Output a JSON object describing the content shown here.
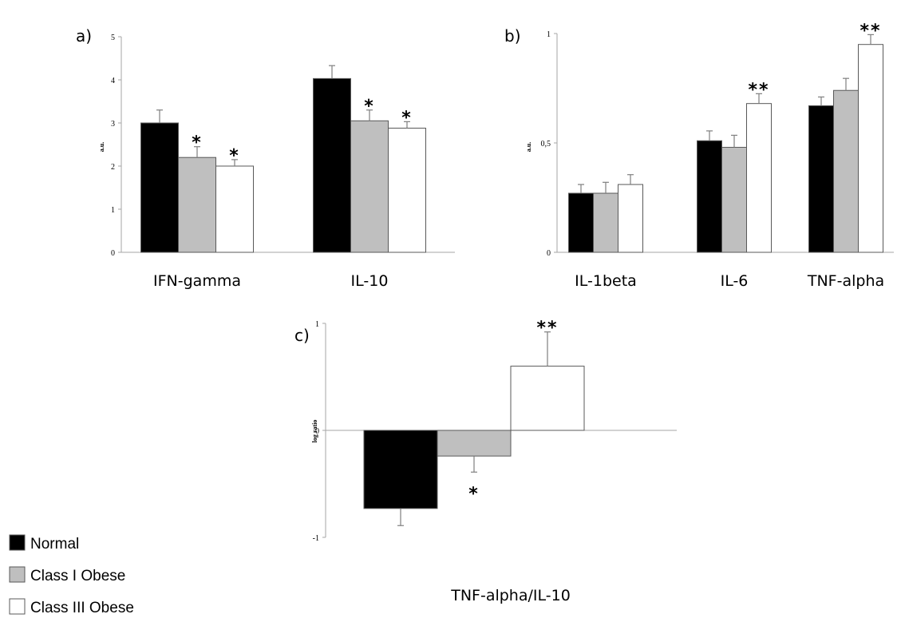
{
  "colors": {
    "Normal": "#000000",
    "Class I Obese": "#bfbfbf",
    "Class III Obese": "#ffffff",
    "axis": "#a6a6a6",
    "bar_stroke": "#595959"
  },
  "legend": {
    "items": [
      "Normal",
      "Class I Obese",
      "Class III Obese"
    ]
  },
  "chart_data": [
    {
      "panel": "a)",
      "type": "bar",
      "ylabel": "a.u.",
      "ylim": [
        0,
        5
      ],
      "yticks": [
        "0",
        "1",
        "2",
        "3",
        "4",
        "5"
      ],
      "categories": [
        "IFN-gamma",
        "IL-10"
      ],
      "series": [
        {
          "name": "Normal",
          "values": [
            3.0,
            4.03
          ],
          "errors": [
            0.3,
            0.3
          ]
        },
        {
          "name": "Class I Obese",
          "values": [
            2.2,
            3.05
          ],
          "errors": [
            0.25,
            0.25
          ]
        },
        {
          "name": "Class III Obese",
          "values": [
            2.0,
            2.88
          ],
          "errors": [
            0.15,
            0.15
          ]
        }
      ],
      "annotations": [
        {
          "category": "IFN-gamma",
          "series": "Class I Obese",
          "text": "*"
        },
        {
          "category": "IFN-gamma",
          "series": "Class III Obese",
          "text": "*"
        },
        {
          "category": "IL-10",
          "series": "Class I Obese",
          "text": "*"
        },
        {
          "category": "IL-10",
          "series": "Class III Obese",
          "text": "*"
        }
      ]
    },
    {
      "panel": "b)",
      "type": "bar",
      "ylabel": "a.u.",
      "ylim": [
        0,
        1
      ],
      "yticks": [
        "0",
        "0,5",
        "1"
      ],
      "categories": [
        "IL-1beta",
        "IL-6",
        "TNF-alpha"
      ],
      "series": [
        {
          "name": "Normal",
          "values": [
            0.27,
            0.51,
            0.67
          ],
          "errors": [
            0.04,
            0.045,
            0.04
          ]
        },
        {
          "name": "Class I Obese",
          "values": [
            0.27,
            0.48,
            0.74
          ],
          "errors": [
            0.05,
            0.055,
            0.055
          ]
        },
        {
          "name": "Class III Obese",
          "values": [
            0.31,
            0.68,
            0.95
          ],
          "errors": [
            0.045,
            0.045,
            0.045
          ]
        }
      ],
      "annotations": [
        {
          "category": "IL-6",
          "series": "Class III Obese",
          "text": "**"
        },
        {
          "category": "TNF-alpha",
          "series": "Class III Obese",
          "text": "**"
        }
      ]
    },
    {
      "panel": "c)",
      "type": "bar",
      "ylabel": "log ratio",
      "ylim": [
        -1,
        1
      ],
      "yticks": [
        "-1",
        "0",
        "1"
      ],
      "categories": [
        "TNF-alpha/IL-10"
      ],
      "series": [
        {
          "name": "Normal",
          "values": [
            -0.73
          ],
          "errors": [
            0.16
          ]
        },
        {
          "name": "Class I Obese",
          "values": [
            -0.24
          ],
          "errors": [
            0.15
          ]
        },
        {
          "name": "Class III Obese",
          "values": [
            0.6
          ],
          "errors": [
            0.32
          ]
        }
      ],
      "annotations": [
        {
          "category": "TNF-alpha/IL-10",
          "series": "Class I Obese",
          "text": "*"
        },
        {
          "category": "TNF-alpha/IL-10",
          "series": "Class III Obese",
          "text": "**"
        }
      ]
    }
  ]
}
